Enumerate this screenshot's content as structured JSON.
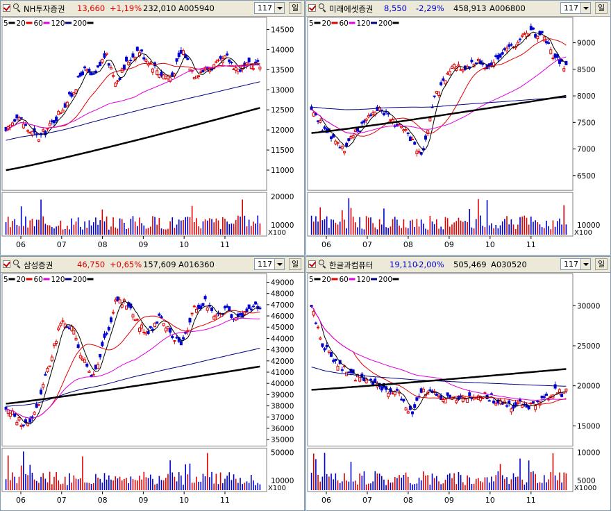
{
  "panels": [
    {
      "name": "NH투자증권",
      "price": "13,660",
      "change": "+1,19%",
      "volume": "232,010",
      "code": "A005940",
      "direction": "up",
      "count": "117",
      "unit_btn": "일",
      "legend": [
        "5",
        "20",
        "60",
        "120",
        "200"
      ],
      "price_ticks": [
        "14500",
        "14000",
        "13500",
        "13000",
        "12500",
        "12000",
        "11500",
        "11000"
      ],
      "vol_ticks": [
        "20000",
        "10000"
      ],
      "vol_unit": "X100",
      "months": [
        "06",
        "07",
        "08",
        "09",
        "10",
        "11"
      ]
    },
    {
      "name": "미래에셋증권",
      "price": "8,550",
      "change": "-2,29%",
      "volume": "458,913",
      "code": "A006800",
      "direction": "down",
      "count": "117",
      "unit_btn": "일",
      "legend": [
        "5",
        "20",
        "60",
        "120",
        "200"
      ],
      "price_ticks": [
        "9000",
        "8500",
        "8000",
        "7500",
        "7000",
        "6500"
      ],
      "vol_ticks": [
        "10000"
      ],
      "vol_unit": "X100",
      "months": [
        "06",
        "07",
        "08",
        "09",
        "10",
        "11"
      ]
    },
    {
      "name": "삼성증권",
      "price": "46,750",
      "change": "+0,65%",
      "volume": "157,609",
      "code": "A016360",
      "direction": "up",
      "count": "117",
      "unit_btn": "일",
      "legend": [
        "5",
        "20",
        "60",
        "120",
        "200"
      ],
      "price_ticks": [
        "49000",
        "48000",
        "47000",
        "46000",
        "45000",
        "44000",
        "43000",
        "42000",
        "41000",
        "40000",
        "39000",
        "38000",
        "37000",
        "36000",
        "35000"
      ],
      "vol_ticks": [
        "50000",
        "10000"
      ],
      "vol_unit": "X100",
      "months": [
        "06",
        "07",
        "08",
        "09",
        "10",
        "11"
      ]
    },
    {
      "name": "한글과컴퓨터",
      "price": "19,110",
      "change": "-2,00%",
      "volume": "505,469",
      "code": "A030520",
      "direction": "down",
      "count": "117",
      "unit_btn": "일",
      "legend": [
        "5",
        "20",
        "60",
        "120",
        "200"
      ],
      "price_ticks": [
        "30000",
        "25000",
        "20000",
        "15000"
      ],
      "vol_ticks": [
        "10000",
        "5000"
      ],
      "vol_unit": "X1000",
      "months": [
        "06",
        "07",
        "08",
        "09",
        "10",
        "11"
      ]
    }
  ],
  "colors": {
    "up": "#e00000",
    "down": "#0000d0",
    "ma5": "#000000",
    "ma20": "#e00000",
    "ma60": "#e000e0",
    "ma120": "#000080",
    "ma200": "#000000"
  }
}
